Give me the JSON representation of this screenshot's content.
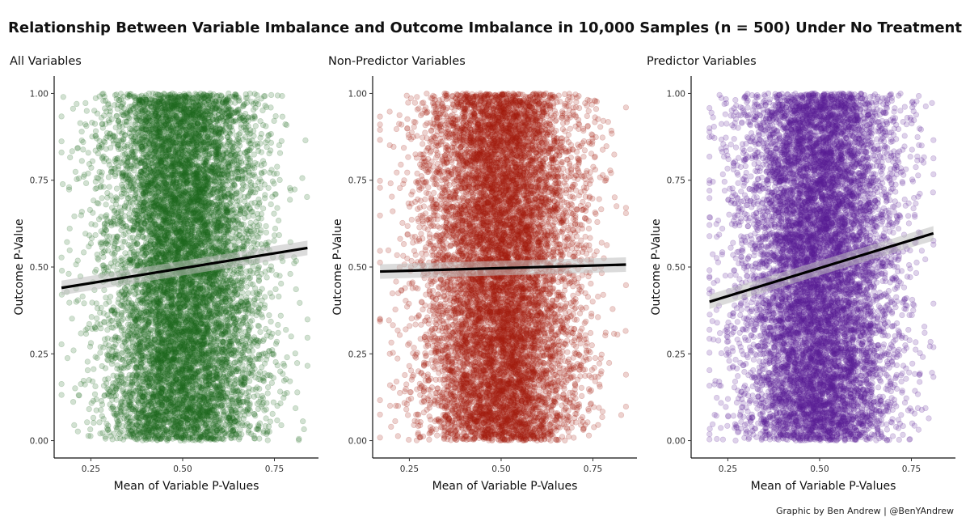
{
  "title": "Relationship Between Variable Imbalance and Outcome Imbalance in 10,000 Samples (n = 500) Under No Treatment",
  "credit": "Graphic by Ben Andrew | @BenYAndrew",
  "chart_data": [
    {
      "type": "scatter",
      "title": "All Variables",
      "xlabel": "Mean of Variable P-Values",
      "ylabel": "Outcome P-Value",
      "xlim": [
        0.15,
        0.87
      ],
      "ylim": [
        -0.05,
        1.05
      ],
      "xticks": [
        0.25,
        0.5,
        0.75
      ],
      "xtick_labels": [
        "0.25",
        "0.50",
        "0.75"
      ],
      "yticks": [
        0,
        0.25,
        0.5,
        0.75,
        1
      ],
      "ytick_labels": [
        "0.00",
        "0.25",
        "0.50",
        "0.75",
        "1.00"
      ],
      "point_color": "#1f6b1f",
      "point_alpha": 0.2,
      "n_points": 10000,
      "point_distribution": {
        "x_mean": 0.5,
        "x_sd": 0.105,
        "x_range": [
          0.17,
          0.84
        ],
        "y_range": [
          0,
          1
        ]
      },
      "trend_line": {
        "x": [
          0.17,
          0.84
        ],
        "y": [
          0.44,
          0.555
        ],
        "color": "#000000"
      },
      "grid": false
    },
    {
      "type": "scatter",
      "title": "Non-Predictor Variables",
      "xlabel": "Mean of Variable P-Values",
      "ylabel": "Outcome P-Value",
      "xlim": [
        0.15,
        0.87
      ],
      "ylim": [
        -0.05,
        1.05
      ],
      "xticks": [
        0.25,
        0.5,
        0.75
      ],
      "xtick_labels": [
        "0.25",
        "0.50",
        "0.75"
      ],
      "yticks": [
        0,
        0.25,
        0.5,
        0.75,
        1
      ],
      "ytick_labels": [
        "0.00",
        "0.25",
        "0.50",
        "0.75",
        "1.00"
      ],
      "point_color": "#a51d10",
      "point_alpha": 0.2,
      "n_points": 10000,
      "point_distribution": {
        "x_mean": 0.5,
        "x_sd": 0.105,
        "x_range": [
          0.17,
          0.84
        ],
        "y_range": [
          0,
          1
        ]
      },
      "trend_line": {
        "x": [
          0.17,
          0.84
        ],
        "y": [
          0.487,
          0.507
        ],
        "color": "#000000"
      },
      "grid": false
    },
    {
      "type": "scatter",
      "title": "Predictor Variables",
      "xlabel": "Mean of Variable P-Values",
      "ylabel": "Outcome P-Value",
      "xlim": [
        0.15,
        0.87
      ],
      "ylim": [
        -0.05,
        1.05
      ],
      "xticks": [
        0.25,
        0.5,
        0.75
      ],
      "xtick_labels": [
        "0.25",
        "0.50",
        "0.75"
      ],
      "yticks": [
        0,
        0.25,
        0.5,
        0.75,
        1
      ],
      "ytick_labels": [
        "0.00",
        "0.25",
        "0.50",
        "0.75",
        "1.00"
      ],
      "point_color": "#5b1f98",
      "point_alpha": 0.2,
      "n_points": 10000,
      "point_distribution": {
        "x_mean": 0.5,
        "x_sd": 0.105,
        "x_range": [
          0.2,
          0.81
        ],
        "y_range": [
          0,
          1
        ]
      },
      "trend_line": {
        "x": [
          0.2,
          0.81
        ],
        "y": [
          0.4,
          0.597
        ],
        "color": "#000000"
      },
      "grid": false
    }
  ]
}
